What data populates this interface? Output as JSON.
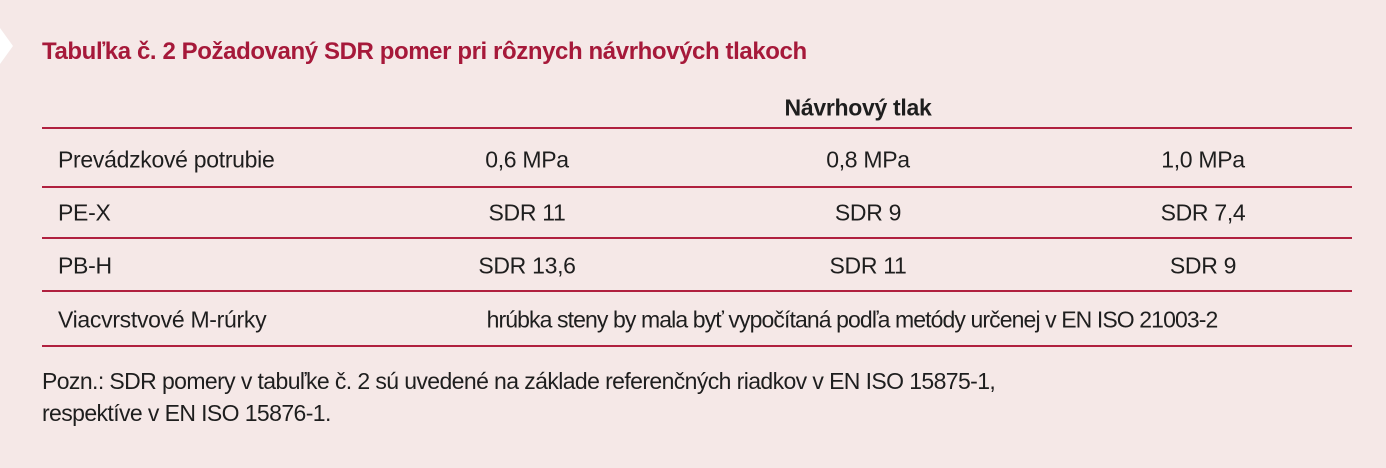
{
  "title": "Tabuľka č. 2 Požadovaný SDR pomer pri rôznych návrhových tlakoch",
  "table": {
    "group_header": "Návrhový tlak",
    "columns": [
      "Prevádzkové potrubie",
      "0,6 MPa",
      "0,8 MPa",
      "1,0 MPa"
    ],
    "rows": [
      [
        "PE-X",
        "SDR 11",
        "SDR 9",
        "SDR 7,4"
      ],
      [
        "PB-H",
        "SDR 13,6",
        "SDR 11",
        "SDR 9"
      ]
    ],
    "merged_row": {
      "label": "Viacvrstvové M-rúrky",
      "value": "hrúbka steny by mala byť vypočítaná podľa metódy určenej v EN ISO 21003-2"
    }
  },
  "note": {
    "line1": "Pozn.: SDR pomery v tabuľke č. 2 sú uvedené na základe referenčných riadkov v EN ISO 15875-1,",
    "line2": "respektíve v EN ISO 15876-1."
  },
  "colors": {
    "accent": "#a6193a",
    "background": "#f5e8e7"
  }
}
